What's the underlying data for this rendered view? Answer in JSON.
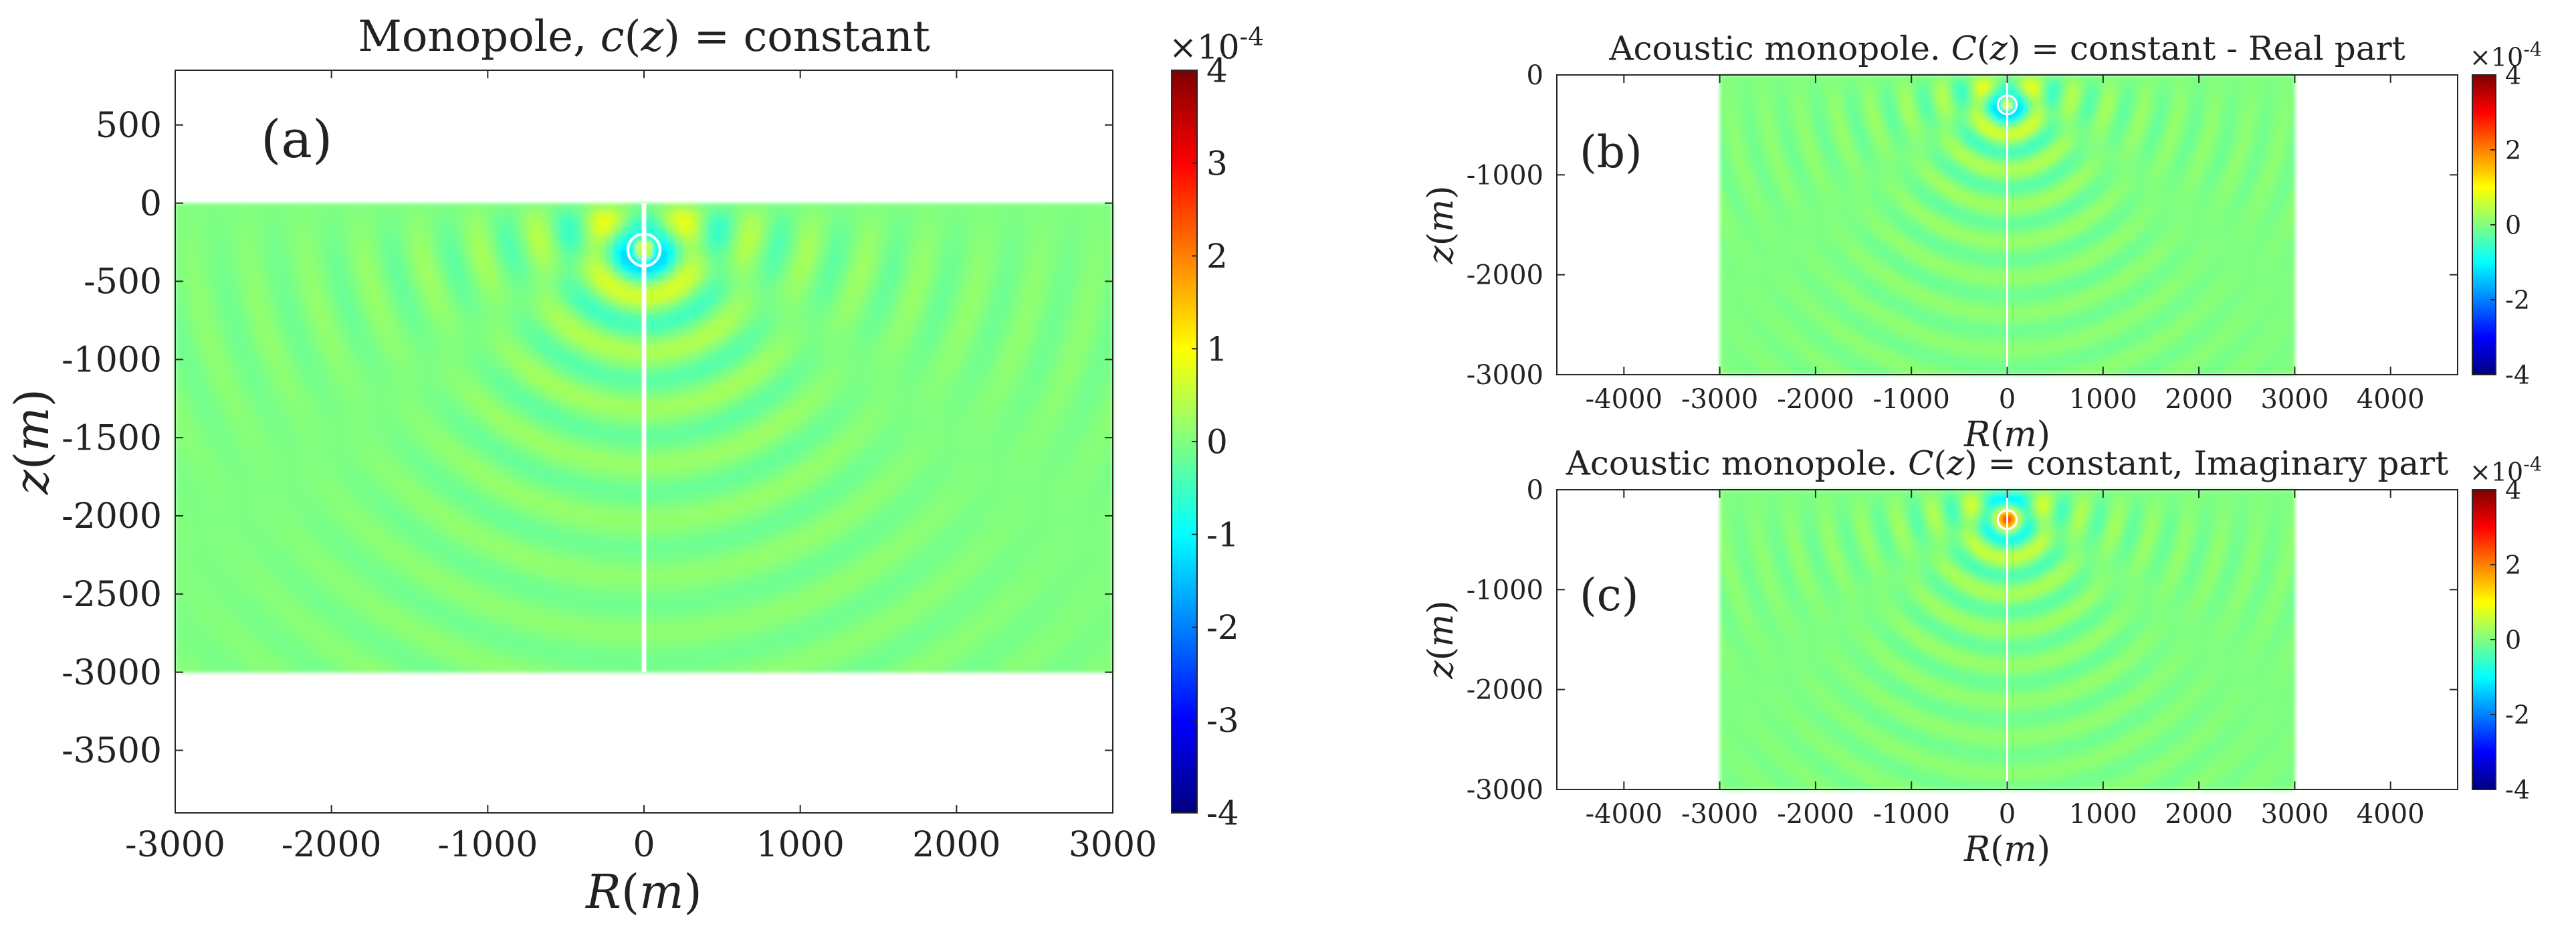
{
  "colormap": [
    "#00007f",
    "#0000ff",
    "#0080ff",
    "#00ffff",
    "#80ff80",
    "#ffff00",
    "#ff8000",
    "#ff0000",
    "#7f0000"
  ],
  "line_color": "#ffffff",
  "chart_data": [
    {
      "id": "a",
      "type": "heatmap",
      "panel_label": "(a)",
      "title": "Monopole, c(z) = constant",
      "title_parts": [
        "Monopole, ",
        "c",
        "(",
        "z",
        ") = constant"
      ],
      "xlabel": [
        "R",
        "(",
        "m",
        ")"
      ],
      "ylabel": [
        "z",
        "(",
        "m",
        ")"
      ],
      "xlim": [
        -3000,
        3000
      ],
      "ylim": [
        -3900,
        850
      ],
      "xticks": [
        -3000,
        -2000,
        -1000,
        0,
        1000,
        2000,
        3000
      ],
      "yticks": [
        500,
        0,
        -500,
        -1000,
        -1500,
        -2000,
        -2500,
        -3000,
        -3500
      ],
      "field_x": [
        -3000,
        3000
      ],
      "field_z": [
        -3000,
        0
      ],
      "source": {
        "R": 0,
        "z": -300
      },
      "field": "real",
      "colorbar": {
        "range": [
          -4,
          4
        ],
        "ticks": [
          4,
          3,
          2,
          1,
          0,
          -1,
          -2,
          -3,
          -4
        ],
        "exponent_base": "×10",
        "exponent": "-4"
      }
    },
    {
      "id": "b",
      "type": "heatmap",
      "panel_label": "(b)",
      "title": "Acoustic monopole. C(z) = constant - Real part",
      "title_parts": [
        "Acoustic monopole. ",
        "C",
        "(",
        "z",
        ") = constant - Real part"
      ],
      "xlabel": [
        "R",
        "(",
        "m",
        ")"
      ],
      "ylabel": [
        "z",
        "(",
        "m",
        ")"
      ],
      "xlim": [
        -4700,
        4700
      ],
      "ylim": [
        -3000,
        0
      ],
      "xticks": [
        -4000,
        -3000,
        -2000,
        -1000,
        0,
        1000,
        2000,
        3000,
        4000
      ],
      "yticks": [
        0,
        -1000,
        -2000,
        -3000
      ],
      "field_x": [
        -3000,
        3000
      ],
      "field_z": [
        -3000,
        0
      ],
      "source": {
        "R": 0,
        "z": -300
      },
      "field": "real",
      "colorbar": {
        "range": [
          -4,
          4
        ],
        "ticks": [
          4,
          2,
          0,
          -2,
          -4
        ],
        "exponent_base": "×10",
        "exponent": "-4"
      }
    },
    {
      "id": "c",
      "type": "heatmap",
      "panel_label": "(c)",
      "title": "Acoustic monopole. C(z) = constant, Imaginary part",
      "title_parts": [
        "Acoustic monopole. ",
        "C",
        "(",
        "z",
        ") = constant, Imaginary part"
      ],
      "xlabel": [
        "R",
        "(",
        "m",
        ")"
      ],
      "ylabel": [
        "z",
        "(",
        "m",
        ")"
      ],
      "xlim": [
        -4700,
        4700
      ],
      "ylim": [
        -3000,
        0
      ],
      "xticks": [
        -4000,
        -3000,
        -2000,
        -1000,
        0,
        1000,
        2000,
        3000,
        4000
      ],
      "yticks": [
        0,
        -1000,
        -2000,
        -3000
      ],
      "field_x": [
        -3000,
        3000
      ],
      "field_z": [
        -3000,
        0
      ],
      "source": {
        "R": 0,
        "z": -300
      },
      "field": "imag",
      "colorbar": {
        "range": [
          -4,
          4
        ],
        "ticks": [
          4,
          2,
          0,
          -2,
          -4
        ],
        "exponent_base": "×10",
        "exponent": "-4"
      }
    }
  ]
}
